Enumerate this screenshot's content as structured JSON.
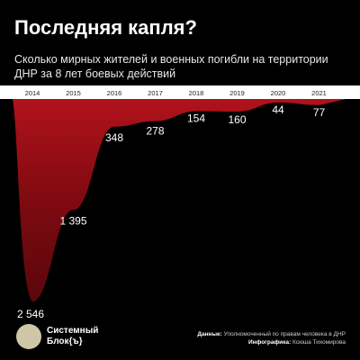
{
  "header": {
    "title": "Последняя капля?",
    "subtitle": "Сколько мирных жителей и военных погибли на территории ДНР за 8 лет боевых действий"
  },
  "colors": {
    "background": "#000000",
    "area": "#8e0a12",
    "text": "#ffffff",
    "year_axis": "#ffffff"
  },
  "chart_data": {
    "type": "area",
    "x": [
      "2014",
      "2015",
      "2016",
      "2017",
      "2018",
      "2019",
      "2020",
      "2021"
    ],
    "values": [
      2546,
      1395,
      348,
      278,
      154,
      160,
      44,
      77
    ],
    "value_labels": [
      "2 546",
      "1 395",
      "348",
      "278",
      "154",
      "160",
      "44",
      "77"
    ],
    "ylim": [
      0,
      2546
    ],
    "orientation": "inverted (values grow downward from top axis)",
    "grid": false
  },
  "footer": {
    "brand_line1": "Системный",
    "brand_line2": "Блок{ъ}",
    "data_label": "Данные:",
    "data_source": "Уполномоченный по правам человека в ДНР",
    "infographic_label": "Инфографика:",
    "infographic_author": "Ксюша Тихомирова"
  }
}
